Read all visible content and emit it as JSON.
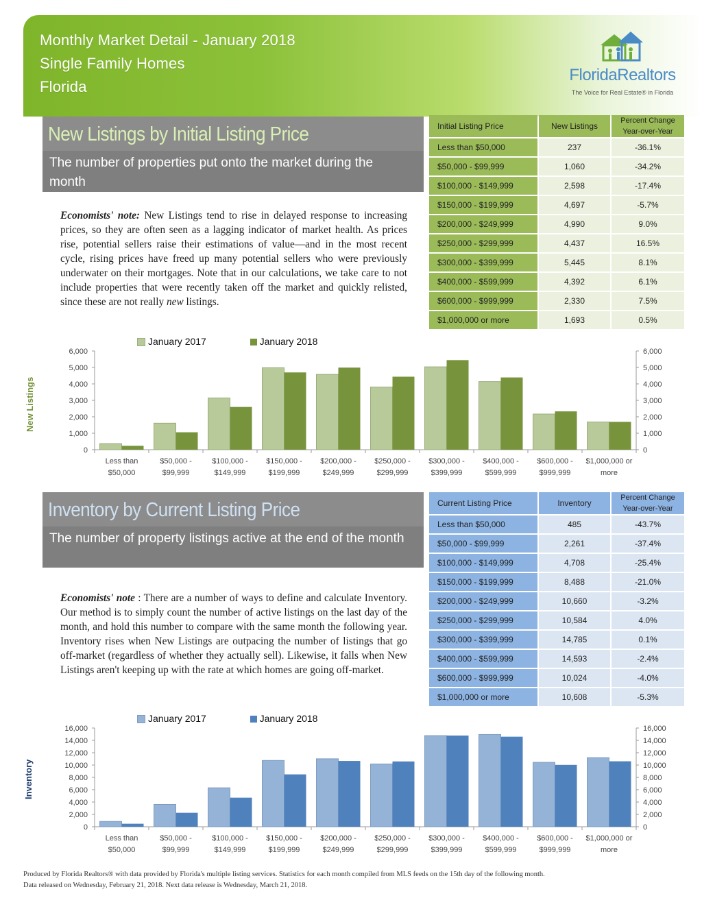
{
  "header": {
    "line1": "Monthly Market Detail - January 2018",
    "line2": "Single Family Homes",
    "line3": "Florida"
  },
  "logo": {
    "name": "FloridaRealtors",
    "tagline": "The Voice for Real Estate® in Florida",
    "icon": "houses-people-logo-icon"
  },
  "colors": {
    "green_light": "#b8c99a",
    "green_dark": "#77933c",
    "blue_light": "#95b3d7",
    "blue_dark": "#4f81bd",
    "table_green_header": "#9bbb59",
    "table_blue": "#8db3e2"
  },
  "new_listings": {
    "title": "New Listings by Initial Listing Price",
    "subtitle": "The number of properties put onto the market during the month",
    "note_label": "Economists' note:",
    "note_text_1": " New Listings tend to rise in delayed response to increasing prices, so they are often seen as a lagging indicator of market health.  As prices rise, potential sellers raise their estimations of value—and in the most recent cycle, rising prices have freed up many potential sellers who were previously underwater on their mortgages.  Note that in our calculations, we take care to not include properties that were recently taken off the market and quickly relisted, since these are not really ",
    "note_italic": "new",
    "note_text_2": " listings.",
    "table": {
      "headers": [
        "Initial Listing Price",
        "New Listings",
        "Percent Change Year-over-Year"
      ],
      "rows": [
        [
          "Less than $50,000",
          "237",
          "-36.1%"
        ],
        [
          "$50,000 - $99,999",
          "1,060",
          "-34.2%"
        ],
        [
          "$100,000 - $149,999",
          "2,598",
          "-17.4%"
        ],
        [
          "$150,000 - $199,999",
          "4,697",
          "-5.7%"
        ],
        [
          "$200,000 - $249,999",
          "4,990",
          "9.0%"
        ],
        [
          "$250,000 - $299,999",
          "4,437",
          "16.5%"
        ],
        [
          "$300,000 - $399,999",
          "5,445",
          "8.1%"
        ],
        [
          "$400,000 - $599,999",
          "4,392",
          "6.1%"
        ],
        [
          "$600,000 - $999,999",
          "2,330",
          "7.5%"
        ],
        [
          "$1,000,000 or more",
          "1,693",
          "0.5%"
        ]
      ]
    }
  },
  "inventory": {
    "title": "Inventory by Current Listing Price",
    "subtitle": "The number of property listings active at the end of the month",
    "note_label": "Economists' note",
    "note_text": " :  There are a number of ways to define and calculate Inventory.  Our method is to simply count the number of active listings on the last day of the month, and hold this number to compare with the same month the following year.  Inventory rises when New Listings are outpacing the number of listings that go off-market (regardless of whether they actually sell).  Likewise, it falls when New Listings aren't keeping up with the rate at which homes are going off-market.",
    "table": {
      "headers": [
        "Current Listing Price",
        "Inventory",
        "Percent Change Year-over-Year"
      ],
      "rows": [
        [
          "Less than $50,000",
          "485",
          "-43.7%"
        ],
        [
          "$50,000 - $99,999",
          "2,261",
          "-37.4%"
        ],
        [
          "$100,000 - $149,999",
          "4,708",
          "-25.4%"
        ],
        [
          "$150,000 - $199,999",
          "8,488",
          "-21.0%"
        ],
        [
          "$200,000 - $249,999",
          "10,660",
          "-3.2%"
        ],
        [
          "$250,000 - $299,999",
          "10,584",
          "4.0%"
        ],
        [
          "$300,000 - $399,999",
          "14,785",
          "0.1%"
        ],
        [
          "$400,000 - $599,999",
          "14,593",
          "-2.4%"
        ],
        [
          "$600,000 - $999,999",
          "10,024",
          "-4.0%"
        ],
        [
          "$1,000,000 or more",
          "10,608",
          "-5.3%"
        ]
      ]
    }
  },
  "chart_data": [
    {
      "type": "bar",
      "title": "",
      "ylabel": "New Listings",
      "xlabel": "",
      "ylim": [
        0,
        6000
      ],
      "yticks": [
        "0",
        "1,000",
        "2,000",
        "3,000",
        "4,000",
        "5,000",
        "6,000"
      ],
      "legend_position": "top",
      "categories": [
        [
          "Less than",
          "$50,000"
        ],
        [
          "$50,000 -",
          "$99,999"
        ],
        [
          "$100,000 -",
          "$149,999"
        ],
        [
          "$150,000 -",
          "$199,999"
        ],
        [
          "$200,000 -",
          "$249,999"
        ],
        [
          "$250,000 -",
          "$299,999"
        ],
        [
          "$300,000 -",
          "$399,999"
        ],
        [
          "$400,000 -",
          "$599,999"
        ],
        [
          "$600,000 -",
          "$999,999"
        ],
        [
          "$1,000,000 or",
          "more"
        ]
      ],
      "series": [
        {
          "name": "January 2017",
          "values": [
            371,
            1611,
            3146,
            4981,
            4578,
            3809,
            5037,
            4140,
            2167,
            1685
          ]
        },
        {
          "name": "January 2018",
          "values": [
            237,
            1060,
            2598,
            4697,
            4990,
            4437,
            5445,
            4392,
            2330,
            1693
          ]
        }
      ]
    },
    {
      "type": "bar",
      "title": "",
      "ylabel": "Inventory",
      "xlabel": "",
      "ylim": [
        0,
        16000
      ],
      "yticks": [
        "0",
        "2,000",
        "4,000",
        "6,000",
        "8,000",
        "10,000",
        "12,000",
        "14,000",
        "16,000"
      ],
      "legend_position": "top",
      "categories": [
        [
          "Less than",
          "$50,000"
        ],
        [
          "$50,000 -",
          "$99,999"
        ],
        [
          "$100,000 -",
          "$149,999"
        ],
        [
          "$150,000 -",
          "$199,999"
        ],
        [
          "$200,000 -",
          "$249,999"
        ],
        [
          "$250,000 -",
          "$299,999"
        ],
        [
          "$300,000 -",
          "$399,999"
        ],
        [
          "$400,000 -",
          "$599,999"
        ],
        [
          "$600,000 -",
          "$999,999"
        ],
        [
          "$1,000,000 or",
          "more"
        ]
      ],
      "series": [
        {
          "name": "January 2017",
          "values": [
            861,
            3612,
            6311,
            10744,
            11012,
            10177,
            14770,
            14952,
            10442,
            11201
          ]
        },
        {
          "name": "January 2018",
          "values": [
            485,
            2261,
            4708,
            8488,
            10660,
            10584,
            14785,
            14593,
            10024,
            10608
          ]
        }
      ]
    }
  ],
  "footer": {
    "line1": "Produced by Florida Realtors® with data provided by Florida's multiple listing services. Statistics for each month compiled from MLS feeds on the 15th day of the following month.",
    "line2": "Data released on Wednesday, February 21, 2018. Next data release is Wednesday, March 21, 2018."
  }
}
